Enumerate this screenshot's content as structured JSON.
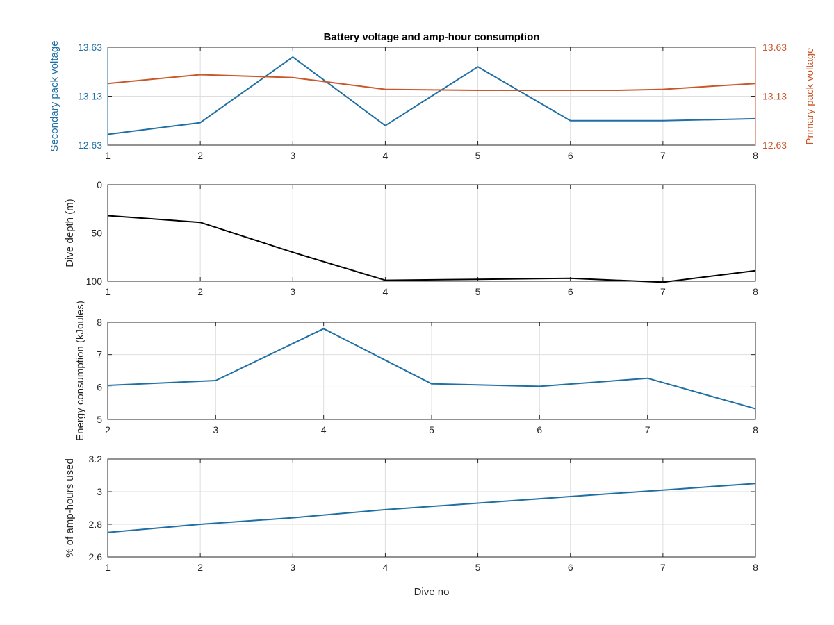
{
  "colors": {
    "secondary": "#1f6fa5",
    "primary": "#c9572a",
    "depth": "#000000",
    "energy": "#1f6fa5",
    "amphours": "#1f6fa5"
  },
  "chart_data": [
    {
      "type": "line",
      "title": "Battery voltage and amp-hour consumption",
      "xlabel": "",
      "ylabel": "Secondary pack voltage",
      "y2label": "Primary pack voltage",
      "xlim": [
        1,
        8
      ],
      "ylim": [
        12.63,
        13.63
      ],
      "y2lim": [
        12.63,
        13.63
      ],
      "xticks": [
        "1",
        "2",
        "3",
        "4",
        "5",
        "6",
        "7",
        "8"
      ],
      "yticks": [
        "12.63",
        "13.13",
        "13.63"
      ],
      "y2ticks": [
        "12.63",
        "13.13",
        "13.63"
      ],
      "grid": true,
      "series": [
        {
          "axis": "left",
          "x": [
            1,
            2,
            3,
            4,
            5,
            6,
            7,
            8
          ],
          "values": [
            12.74,
            12.86,
            13.53,
            12.83,
            13.43,
            12.88,
            12.88,
            12.9
          ]
        },
        {
          "axis": "right",
          "x": [
            1,
            2,
            3,
            4,
            5,
            6,
            6.5,
            7,
            8
          ],
          "values": [
            13.26,
            13.35,
            13.32,
            13.2,
            13.19,
            13.19,
            13.19,
            13.2,
            13.26
          ]
        }
      ]
    },
    {
      "type": "line",
      "xlabel": "",
      "ylabel": "Dive depth (m)",
      "xlim": [
        1,
        8
      ],
      "ylim": [
        0,
        100
      ],
      "yreversed": true,
      "xticks": [
        "1",
        "2",
        "3",
        "4",
        "5",
        "6",
        "7",
        "8"
      ],
      "yticks": [
        "0",
        "50",
        "100"
      ],
      "grid": true,
      "series": [
        {
          "x": [
            1,
            2,
            3,
            4,
            5,
            6,
            7,
            8
          ],
          "values": [
            32,
            39,
            70,
            99,
            98,
            97,
            101,
            89
          ]
        }
      ]
    },
    {
      "type": "line",
      "xlabel": "",
      "ylabel": "Energy consumption (kJoules)",
      "xlim": [
        2,
        8
      ],
      "ylim": [
        5,
        8
      ],
      "xticks": [
        "2",
        "3",
        "4",
        "5",
        "6",
        "7",
        "8"
      ],
      "yticks": [
        "5",
        "6",
        "7",
        "8"
      ],
      "grid": true,
      "series": [
        {
          "x": [
            2,
            3,
            4,
            5,
            6,
            7,
            8
          ],
          "values": [
            6.05,
            6.2,
            7.8,
            6.1,
            6.02,
            6.27,
            5.33
          ]
        }
      ]
    },
    {
      "type": "line",
      "xlabel": "Dive no",
      "ylabel": "% of amp-hours used",
      "xlim": [
        1,
        8
      ],
      "ylim": [
        2.6,
        3.2
      ],
      "xticks": [
        "1",
        "2",
        "3",
        "4",
        "5",
        "6",
        "7",
        "8"
      ],
      "yticks": [
        "2.6",
        "2.8",
        "3",
        "3.2"
      ],
      "grid": true,
      "series": [
        {
          "x": [
            1,
            2,
            3,
            4,
            5,
            6,
            7,
            8
          ],
          "values": [
            2.75,
            2.8,
            2.84,
            2.89,
            2.93,
            2.97,
            3.01,
            3.05
          ]
        }
      ]
    }
  ]
}
